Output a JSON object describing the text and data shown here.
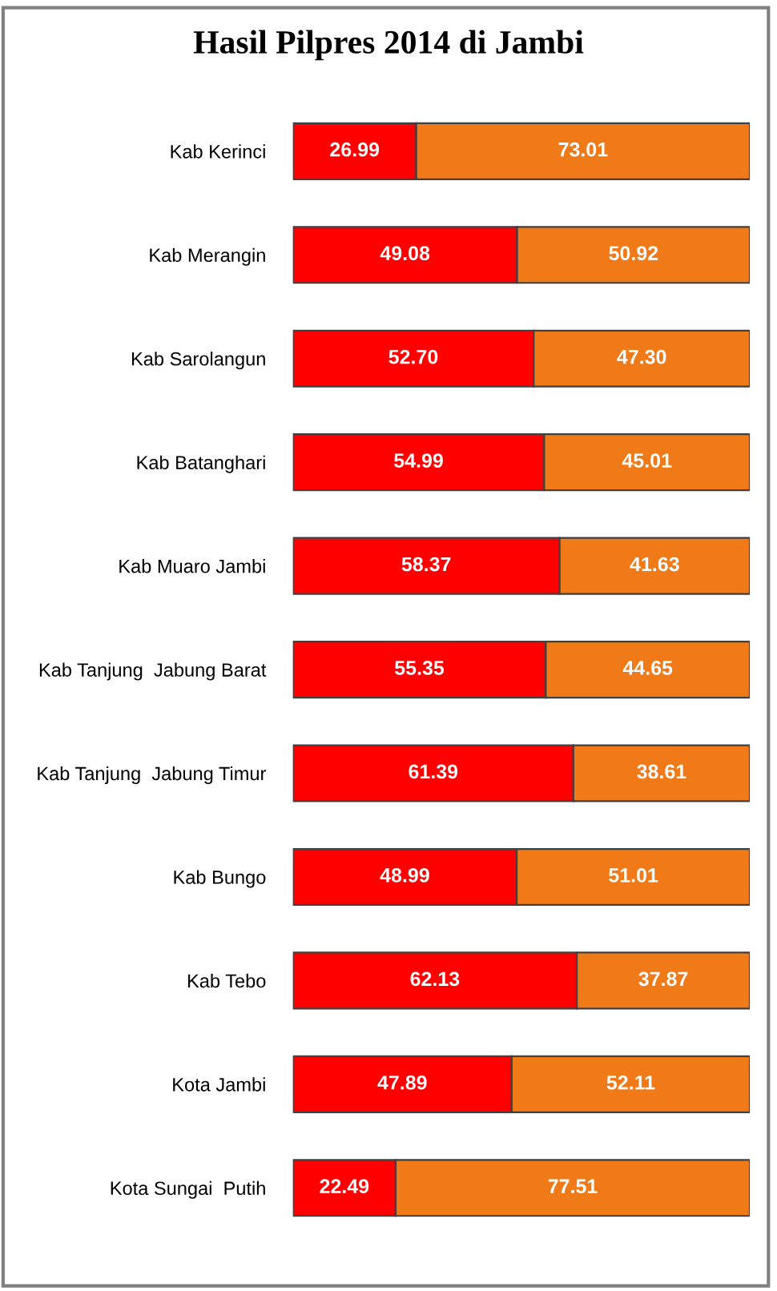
{
  "chart_data": {
    "type": "bar",
    "orientation": "horizontal",
    "stacked": true,
    "title": "Hasil Pilpres 2014 di Jambi",
    "categories": [
      "Kab Kerinci",
      "Kab Merangin",
      "Kab Sarolangun",
      "Kab Batanghari",
      "Kab Muaro Jambi",
      "Kab Tanjung  Jabung Barat",
      "Kab Tanjung  Jabung Timur",
      "Kab Bungo",
      "Kab Tebo",
      "Kota Jambi",
      "Kota Sungai  Putih"
    ],
    "series": [
      {
        "color": "#ff0000",
        "values": [
          26.99,
          49.08,
          52.7,
          54.99,
          58.37,
          55.35,
          61.39,
          48.99,
          62.13,
          47.89,
          22.49
        ],
        "value_labels": [
          "26.99",
          "49.08",
          "52.70",
          "54.99",
          "58.37",
          "55.35",
          "61.39",
          "48.99",
          "62.13",
          "47.89",
          "22.49"
        ]
      },
      {
        "color": "#f07a18",
        "values": [
          73.01,
          50.92,
          47.3,
          45.01,
          41.63,
          44.65,
          38.61,
          51.01,
          37.87,
          52.11,
          77.51
        ],
        "value_labels": [
          "73.01",
          "50.92",
          "47.30",
          "45.01",
          "41.63",
          "44.65",
          "38.61",
          "51.01",
          "37.87",
          "52.11",
          "77.51"
        ]
      }
    ],
    "grid": false,
    "legend": false
  }
}
